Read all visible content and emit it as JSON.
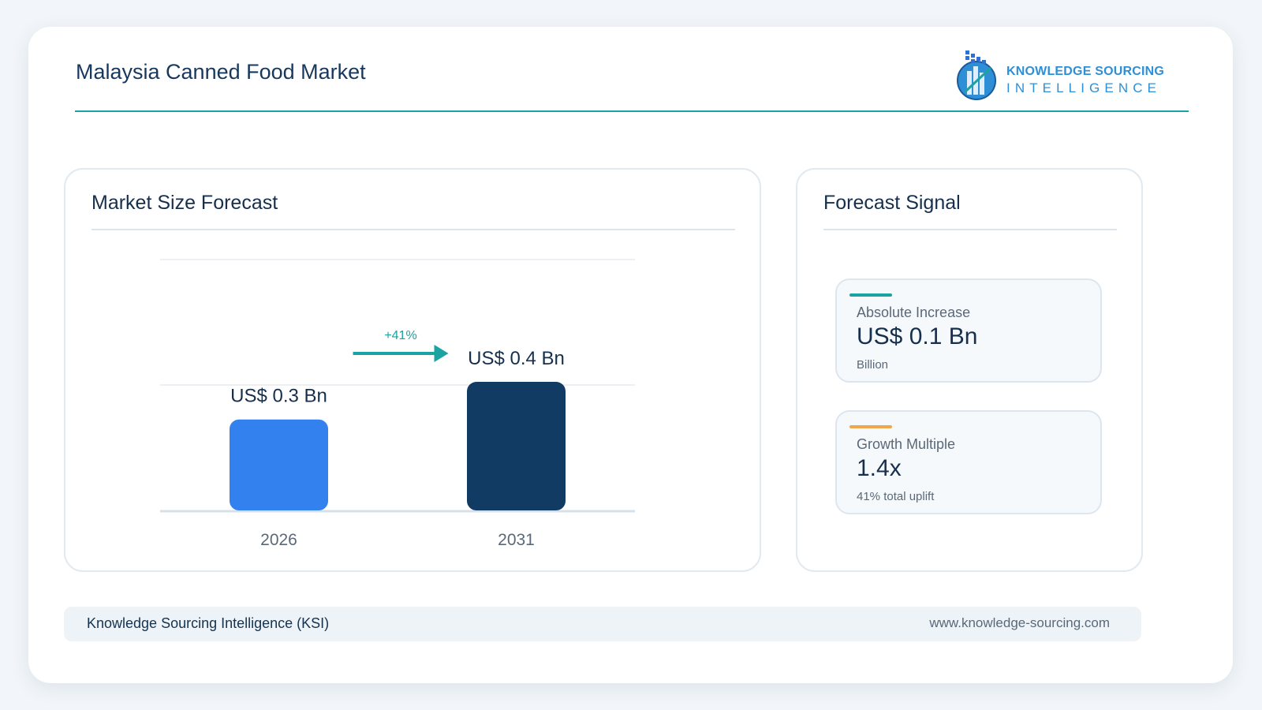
{
  "header": {
    "title": "Malaysia Canned Food Market"
  },
  "logo": {
    "line1": "KNOWLEDGE SOURCING",
    "line2": "INTELLIGENCE"
  },
  "market_panel": {
    "title": "Market Size Forecast"
  },
  "signal_panel": {
    "title": "Forecast Signal"
  },
  "signals": [
    {
      "label": "Absolute Increase",
      "value": "US$ 0.1 Bn",
      "note": "Billion",
      "accent": "#1aa3a0"
    },
    {
      "label": "Growth Multiple",
      "value": "1.4x",
      "note": "41% total uplift",
      "accent": "#f0a64a"
    }
  ],
  "footer": {
    "left": "Knowledge Sourcing Intelligence (KSI)",
    "right": "www.knowledge-sourcing.com"
  },
  "chart_data": {
    "type": "bar",
    "categories": [
      "2026",
      "2031"
    ],
    "values": [
      0.29,
      0.41
    ],
    "value_labels": [
      "US$ 0.3 Bn",
      "US$ 0.4 Bn"
    ],
    "colors": [
      "#3381ee",
      "#123b64"
    ],
    "ylim": [
      0,
      0.8
    ],
    "growth_label": "+41%",
    "accent": "#1aa3a0",
    "grid": true
  }
}
